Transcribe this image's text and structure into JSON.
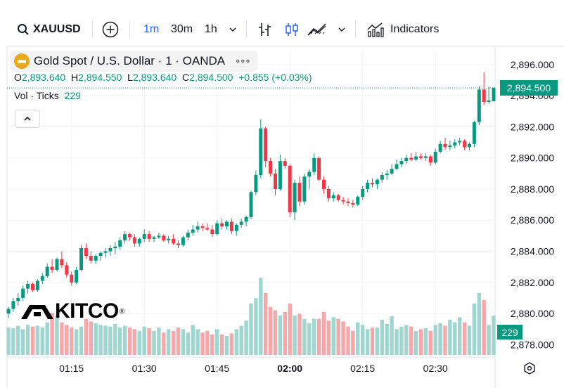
{
  "toolbar": {
    "symbol": "XAUUSD",
    "intervals": [
      "1m",
      "30m",
      "1h"
    ],
    "indicators_label": "Indicators",
    "active_color": "#2962ff"
  },
  "legend": {
    "title": "Gold Spot / U.S. Dollar · 1 · OANDA",
    "more": "∘∘∘",
    "ohlc": {
      "o_label": "O",
      "o": "2,893.640",
      "h_label": "H",
      "h": "2,894.550",
      "l_label": "L",
      "l": "2,893.640",
      "c_label": "C",
      "c": "2,894.500",
      "change": "+0.855 (+0.03%)"
    },
    "vol_label": "Vol · Ticks",
    "vol_value": "229",
    "collapse_icon": "^"
  },
  "watermark": {
    "text": "KITCO",
    "mark": "®"
  },
  "colors": {
    "up": "#089981",
    "down": "#f23645",
    "vol_up": "#9fd6d0",
    "vol_down": "#f5a7aa",
    "last": "#089981"
  },
  "chart_data": {
    "type": "candlestick",
    "symbol": "XAUUSD",
    "interval": "1m",
    "ylim": [
      2877.2,
      2896.9
    ],
    "yticks": [
      2878.0,
      2880.0,
      2882.0,
      2884.0,
      2886.0,
      2888.0,
      2890.0,
      2892.0,
      2894.0,
      2896.0
    ],
    "ytick_labels": [
      "2,878.000",
      "2,880.000",
      "2,882.000",
      "2,884.000",
      "2,886.000",
      "2,888.000",
      "2,890.000",
      "2,892.000",
      "2,894.000",
      "2,896.000"
    ],
    "xticks": [
      {
        "index": 13,
        "label": "01:15"
      },
      {
        "index": 28,
        "label": "01:30"
      },
      {
        "index": 43,
        "label": "01:45"
      },
      {
        "index": 58,
        "label": "02:00",
        "bold": true
      },
      {
        "index": 73,
        "label": "02:15"
      },
      {
        "index": 88,
        "label": "02:30"
      }
    ],
    "last_price": 2894.5,
    "last_price_label": "2,894.500",
    "last_volume": 229,
    "last_volume_label": "229",
    "volume_max": 450,
    "candles": [
      {
        "o": 2880.0,
        "h": 2880.4,
        "l": 2879.7,
        "c": 2880.3,
        "v": 160
      },
      {
        "o": 2880.3,
        "h": 2881.0,
        "l": 2880.1,
        "c": 2880.8,
        "v": 155
      },
      {
        "o": 2880.8,
        "h": 2881.3,
        "l": 2880.5,
        "c": 2881.0,
        "v": 170
      },
      {
        "o": 2881.0,
        "h": 2881.8,
        "l": 2880.8,
        "c": 2881.6,
        "v": 150
      },
      {
        "o": 2881.6,
        "h": 2882.1,
        "l": 2881.3,
        "c": 2881.9,
        "v": 175
      },
      {
        "o": 2881.9,
        "h": 2882.0,
        "l": 2881.4,
        "c": 2881.5,
        "v": 165
      },
      {
        "o": 2881.5,
        "h": 2882.2,
        "l": 2881.4,
        "c": 2882.1,
        "v": 170
      },
      {
        "o": 2882.1,
        "h": 2882.6,
        "l": 2881.9,
        "c": 2882.4,
        "v": 160
      },
      {
        "o": 2882.4,
        "h": 2883.2,
        "l": 2882.3,
        "c": 2883.0,
        "v": 190
      },
      {
        "o": 2883.0,
        "h": 2883.5,
        "l": 2882.6,
        "c": 2882.8,
        "v": 245
      },
      {
        "o": 2882.8,
        "h": 2883.6,
        "l": 2882.7,
        "c": 2883.5,
        "v": 230
      },
      {
        "o": 2883.5,
        "h": 2884.0,
        "l": 2882.9,
        "c": 2883.1,
        "v": 190
      },
      {
        "o": 2883.1,
        "h": 2883.3,
        "l": 2882.3,
        "c": 2882.5,
        "v": 175
      },
      {
        "o": 2882.5,
        "h": 2882.7,
        "l": 2881.8,
        "c": 2882.0,
        "v": 160
      },
      {
        "o": 2882.0,
        "h": 2883.0,
        "l": 2881.9,
        "c": 2882.8,
        "v": 150
      },
      {
        "o": 2882.8,
        "h": 2884.4,
        "l": 2882.7,
        "c": 2884.2,
        "v": 165
      },
      {
        "o": 2884.2,
        "h": 2884.5,
        "l": 2883.5,
        "c": 2883.7,
        "v": 210
      },
      {
        "o": 2883.7,
        "h": 2884.0,
        "l": 2883.2,
        "c": 2883.4,
        "v": 195
      },
      {
        "o": 2883.4,
        "h": 2883.8,
        "l": 2883.2,
        "c": 2883.7,
        "v": 185
      },
      {
        "o": 2883.7,
        "h": 2884.0,
        "l": 2883.4,
        "c": 2883.9,
        "v": 175
      },
      {
        "o": 2883.9,
        "h": 2884.2,
        "l": 2883.6,
        "c": 2884.0,
        "v": 170
      },
      {
        "o": 2884.0,
        "h": 2884.4,
        "l": 2883.7,
        "c": 2884.2,
        "v": 165
      },
      {
        "o": 2884.2,
        "h": 2884.6,
        "l": 2883.8,
        "c": 2884.3,
        "v": 180
      },
      {
        "o": 2884.3,
        "h": 2884.9,
        "l": 2884.1,
        "c": 2884.7,
        "v": 160
      },
      {
        "o": 2884.7,
        "h": 2885.3,
        "l": 2884.5,
        "c": 2885.1,
        "v": 170
      },
      {
        "o": 2885.1,
        "h": 2885.2,
        "l": 2884.7,
        "c": 2884.9,
        "v": 160
      },
      {
        "o": 2884.9,
        "h": 2885.1,
        "l": 2884.3,
        "c": 2884.5,
        "v": 150
      },
      {
        "o": 2884.5,
        "h": 2884.9,
        "l": 2884.3,
        "c": 2884.8,
        "v": 140
      },
      {
        "o": 2884.8,
        "h": 2885.4,
        "l": 2884.6,
        "c": 2885.1,
        "v": 165
      },
      {
        "o": 2885.1,
        "h": 2885.3,
        "l": 2884.6,
        "c": 2884.8,
        "v": 155
      },
      {
        "o": 2884.8,
        "h": 2885.0,
        "l": 2884.6,
        "c": 2884.9,
        "v": 140
      },
      {
        "o": 2884.9,
        "h": 2885.2,
        "l": 2884.8,
        "c": 2885.0,
        "v": 160
      },
      {
        "o": 2885.0,
        "h": 2885.1,
        "l": 2884.6,
        "c": 2884.7,
        "v": 130
      },
      {
        "o": 2884.7,
        "h": 2885.0,
        "l": 2884.5,
        "c": 2884.8,
        "v": 150
      },
      {
        "o": 2884.8,
        "h": 2885.1,
        "l": 2884.4,
        "c": 2884.5,
        "v": 140
      },
      {
        "o": 2884.5,
        "h": 2884.7,
        "l": 2884.2,
        "c": 2884.4,
        "v": 160
      },
      {
        "o": 2884.4,
        "h": 2885.0,
        "l": 2884.3,
        "c": 2884.9,
        "v": 150
      },
      {
        "o": 2884.9,
        "h": 2885.4,
        "l": 2884.7,
        "c": 2885.2,
        "v": 130
      },
      {
        "o": 2885.2,
        "h": 2885.7,
        "l": 2885.0,
        "c": 2885.4,
        "v": 175
      },
      {
        "o": 2885.4,
        "h": 2885.9,
        "l": 2885.2,
        "c": 2885.6,
        "v": 150
      },
      {
        "o": 2885.6,
        "h": 2885.8,
        "l": 2885.3,
        "c": 2885.5,
        "v": 130
      },
      {
        "o": 2885.5,
        "h": 2885.8,
        "l": 2885.3,
        "c": 2885.4,
        "v": 140
      },
      {
        "o": 2885.4,
        "h": 2885.7,
        "l": 2884.9,
        "c": 2885.1,
        "v": 120
      },
      {
        "o": 2885.1,
        "h": 2886.0,
        "l": 2885.0,
        "c": 2885.8,
        "v": 150
      },
      {
        "o": 2885.8,
        "h": 2886.1,
        "l": 2885.4,
        "c": 2885.6,
        "v": 120
      },
      {
        "o": 2885.6,
        "h": 2886.0,
        "l": 2885.4,
        "c": 2885.9,
        "v": 110
      },
      {
        "o": 2885.9,
        "h": 2886.1,
        "l": 2885.1,
        "c": 2885.3,
        "v": 125
      },
      {
        "o": 2885.3,
        "h": 2885.8,
        "l": 2885.0,
        "c": 2885.7,
        "v": 150
      },
      {
        "o": 2885.7,
        "h": 2886.1,
        "l": 2885.5,
        "c": 2885.9,
        "v": 170
      },
      {
        "o": 2885.9,
        "h": 2886.3,
        "l": 2885.6,
        "c": 2886.2,
        "v": 200
      },
      {
        "o": 2886.2,
        "h": 2887.9,
        "l": 2886.1,
        "c": 2887.8,
        "v": 300
      },
      {
        "o": 2887.8,
        "h": 2889.2,
        "l": 2887.6,
        "c": 2888.9,
        "v": 330
      },
      {
        "o": 2888.9,
        "h": 2892.5,
        "l": 2888.7,
        "c": 2891.9,
        "v": 450
      },
      {
        "o": 2891.9,
        "h": 2892.0,
        "l": 2889.4,
        "c": 2889.8,
        "v": 360
      },
      {
        "o": 2889.8,
        "h": 2890.0,
        "l": 2888.8,
        "c": 2889.0,
        "v": 280
      },
      {
        "o": 2889.0,
        "h": 2889.3,
        "l": 2887.6,
        "c": 2888.0,
        "v": 260
      },
      {
        "o": 2888.0,
        "h": 2890.2,
        "l": 2887.9,
        "c": 2889.8,
        "v": 230
      },
      {
        "o": 2889.8,
        "h": 2890.0,
        "l": 2889.3,
        "c": 2889.5,
        "v": 250
      },
      {
        "o": 2889.5,
        "h": 2889.6,
        "l": 2886.2,
        "c": 2886.5,
        "v": 300
      },
      {
        "o": 2886.5,
        "h": 2888.6,
        "l": 2886.0,
        "c": 2888.4,
        "v": 230
      },
      {
        "o": 2888.4,
        "h": 2888.8,
        "l": 2886.9,
        "c": 2887.2,
        "v": 240
      },
      {
        "o": 2887.2,
        "h": 2889.0,
        "l": 2887.0,
        "c": 2888.8,
        "v": 210
      },
      {
        "o": 2888.8,
        "h": 2889.3,
        "l": 2888.0,
        "c": 2889.1,
        "v": 185
      },
      {
        "o": 2889.1,
        "h": 2890.3,
        "l": 2888.9,
        "c": 2890.0,
        "v": 210
      },
      {
        "o": 2890.0,
        "h": 2890.1,
        "l": 2888.5,
        "c": 2888.6,
        "v": 210
      },
      {
        "o": 2888.6,
        "h": 2888.8,
        "l": 2887.7,
        "c": 2888.0,
        "v": 250
      },
      {
        "o": 2888.0,
        "h": 2888.2,
        "l": 2887.2,
        "c": 2887.4,
        "v": 200
      },
      {
        "o": 2887.4,
        "h": 2887.8,
        "l": 2887.2,
        "c": 2887.6,
        "v": 220
      },
      {
        "o": 2887.6,
        "h": 2887.7,
        "l": 2887.2,
        "c": 2887.3,
        "v": 210
      },
      {
        "o": 2887.3,
        "h": 2887.5,
        "l": 2887.0,
        "c": 2887.2,
        "v": 195
      },
      {
        "o": 2887.2,
        "h": 2887.4,
        "l": 2886.9,
        "c": 2887.1,
        "v": 165
      },
      {
        "o": 2887.1,
        "h": 2887.3,
        "l": 2886.8,
        "c": 2887.0,
        "v": 140
      },
      {
        "o": 2887.0,
        "h": 2887.6,
        "l": 2886.9,
        "c": 2887.5,
        "v": 190
      },
      {
        "o": 2887.5,
        "h": 2888.2,
        "l": 2887.3,
        "c": 2888.0,
        "v": 175
      },
      {
        "o": 2888.0,
        "h": 2888.6,
        "l": 2887.8,
        "c": 2888.4,
        "v": 150
      },
      {
        "o": 2888.4,
        "h": 2888.7,
        "l": 2888.1,
        "c": 2888.3,
        "v": 160
      },
      {
        "o": 2888.3,
        "h": 2888.7,
        "l": 2888.0,
        "c": 2888.6,
        "v": 160
      },
      {
        "o": 2888.6,
        "h": 2889.1,
        "l": 2888.4,
        "c": 2888.9,
        "v": 205
      },
      {
        "o": 2888.9,
        "h": 2889.2,
        "l": 2888.6,
        "c": 2889.0,
        "v": 180
      },
      {
        "o": 2889.0,
        "h": 2889.6,
        "l": 2888.9,
        "c": 2889.3,
        "v": 225
      },
      {
        "o": 2889.3,
        "h": 2889.9,
        "l": 2889.2,
        "c": 2889.6,
        "v": 150
      },
      {
        "o": 2889.6,
        "h": 2890.0,
        "l": 2889.4,
        "c": 2889.8,
        "v": 165
      },
      {
        "o": 2889.8,
        "h": 2890.2,
        "l": 2889.6,
        "c": 2890.0,
        "v": 175
      },
      {
        "o": 2890.0,
        "h": 2890.3,
        "l": 2889.8,
        "c": 2889.9,
        "v": 165
      },
      {
        "o": 2889.9,
        "h": 2890.4,
        "l": 2889.8,
        "c": 2890.1,
        "v": 140
      },
      {
        "o": 2890.1,
        "h": 2890.3,
        "l": 2889.9,
        "c": 2890.0,
        "v": 150
      },
      {
        "o": 2890.0,
        "h": 2890.3,
        "l": 2889.8,
        "c": 2890.1,
        "v": 155
      },
      {
        "o": 2890.1,
        "h": 2890.2,
        "l": 2889.5,
        "c": 2889.7,
        "v": 140
      },
      {
        "o": 2889.7,
        "h": 2890.6,
        "l": 2889.6,
        "c": 2890.4,
        "v": 175
      },
      {
        "o": 2890.4,
        "h": 2891.1,
        "l": 2890.3,
        "c": 2890.9,
        "v": 185
      },
      {
        "o": 2890.9,
        "h": 2891.3,
        "l": 2890.5,
        "c": 2890.7,
        "v": 170
      },
      {
        "o": 2890.7,
        "h": 2891.1,
        "l": 2890.5,
        "c": 2890.8,
        "v": 205
      },
      {
        "o": 2890.8,
        "h": 2891.2,
        "l": 2890.6,
        "c": 2891.0,
        "v": 190
      },
      {
        "o": 2891.0,
        "h": 2891.3,
        "l": 2890.8,
        "c": 2891.1,
        "v": 220
      },
      {
        "o": 2891.1,
        "h": 2891.2,
        "l": 2890.5,
        "c": 2890.7,
        "v": 190
      },
      {
        "o": 2890.7,
        "h": 2891.0,
        "l": 2890.5,
        "c": 2890.9,
        "v": 170
      },
      {
        "o": 2890.9,
        "h": 2892.4,
        "l": 2890.7,
        "c": 2892.3,
        "v": 300
      },
      {
        "o": 2892.3,
        "h": 2894.6,
        "l": 2892.1,
        "c": 2894.4,
        "v": 360
      },
      {
        "o": 2894.4,
        "h": 2895.5,
        "l": 2893.4,
        "c": 2893.6,
        "v": 320
      },
      {
        "o": 2893.6,
        "h": 2894.6,
        "l": 2893.5,
        "c": 2893.7,
        "v": 175
      },
      {
        "o": 2893.64,
        "h": 2894.55,
        "l": 2893.64,
        "c": 2894.5,
        "v": 229
      }
    ]
  }
}
